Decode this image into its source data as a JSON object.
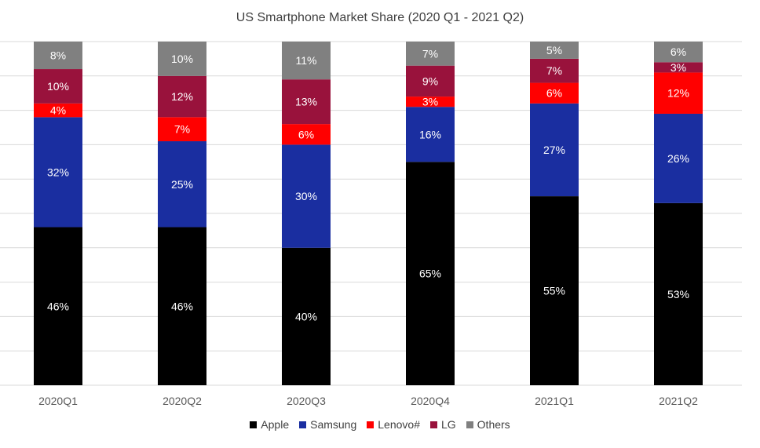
{
  "chart_data": {
    "type": "bar",
    "stacked": true,
    "title": "US Smartphone Market Share (2020 Q1 - 2021 Q2)",
    "xlabel": "",
    "ylabel": "",
    "ylim": [
      0,
      100
    ],
    "grid": true,
    "legend_position": "bottom",
    "categories": [
      "2020Q1",
      "2020Q2",
      "2020Q3",
      "2020Q4",
      "2021Q1",
      "2021Q2"
    ],
    "series": [
      {
        "name": "Apple",
        "color": "#000000",
        "values": [
          46,
          46,
          40,
          65,
          55,
          53
        ]
      },
      {
        "name": "Samsung",
        "color": "#1a2ea0",
        "values": [
          32,
          25,
          30,
          16,
          27,
          26
        ]
      },
      {
        "name": "Lenovo#",
        "color": "#ff0000",
        "values": [
          4,
          7,
          6,
          3,
          6,
          12
        ]
      },
      {
        "name": "LG",
        "color": "#99123c",
        "values": [
          10,
          12,
          13,
          9,
          7,
          3
        ]
      },
      {
        "name": "Others",
        "color": "#808080",
        "values": [
          8,
          10,
          11,
          7,
          5,
          6
        ]
      }
    ],
    "value_suffix": "%"
  }
}
